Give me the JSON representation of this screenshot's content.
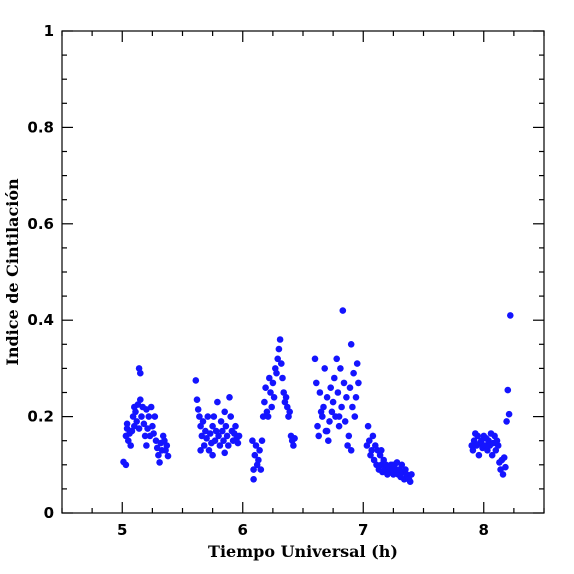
{
  "chart_data": {
    "type": "scatter",
    "xlabel": "Tiempo Universal (h)",
    "ylabel": "Indice de Cintilación",
    "xlim": [
      4.5,
      8.5
    ],
    "ylim": [
      0,
      1
    ],
    "xticks": [
      5,
      6,
      7,
      8
    ],
    "xtick_labels": [
      "5",
      "6",
      "7",
      "8"
    ],
    "yticks": [
      0,
      0.2,
      0.4,
      0.6,
      0.8,
      1
    ],
    "ytick_labels": [
      "0",
      "0.2",
      "0.4",
      "0.6",
      "0.8",
      "1"
    ],
    "grid": false,
    "point_color": "#1414ff",
    "series": [
      {
        "points": [
          [
            5.01,
            0.106
          ],
          [
            5.03,
            0.1
          ],
          [
            5.03,
            0.16
          ],
          [
            5.04,
            0.175
          ],
          [
            5.04,
            0.185
          ],
          [
            5.05,
            0.15
          ],
          [
            5.06,
            0.165
          ],
          [
            5.07,
            0.14
          ],
          [
            5.08,
            0.17
          ],
          [
            5.09,
            0.2
          ],
          [
            5.1,
            0.18
          ],
          [
            5.1,
            0.22
          ],
          [
            5.11,
            0.21
          ],
          [
            5.12,
            0.19
          ],
          [
            5.13,
            0.225
          ],
          [
            5.14,
            0.175
          ],
          [
            5.14,
            0.3
          ],
          [
            5.15,
            0.29
          ],
          [
            5.15,
            0.235
          ],
          [
            5.16,
            0.2
          ],
          [
            5.17,
            0.22
          ],
          [
            5.18,
            0.185
          ],
          [
            5.19,
            0.16
          ],
          [
            5.2,
            0.215
          ],
          [
            5.2,
            0.14
          ],
          [
            5.21,
            0.175
          ],
          [
            5.22,
            0.2
          ],
          [
            5.23,
            0.16
          ],
          [
            5.24,
            0.22
          ],
          [
            5.25,
            0.18
          ],
          [
            5.26,
            0.165
          ],
          [
            5.27,
            0.2
          ],
          [
            5.28,
            0.15
          ],
          [
            5.29,
            0.135
          ],
          [
            5.3,
            0.12
          ],
          [
            5.31,
            0.105
          ],
          [
            5.32,
            0.145
          ],
          [
            5.33,
            0.13
          ],
          [
            5.34,
            0.16
          ],
          [
            5.35,
            0.15
          ],
          [
            5.36,
            0.13
          ],
          [
            5.37,
            0.14
          ],
          [
            5.38,
            0.118
          ],
          [
            5.61,
            0.275
          ],
          [
            5.62,
            0.235
          ],
          [
            5.63,
            0.215
          ],
          [
            5.64,
            0.2
          ],
          [
            5.65,
            0.18
          ],
          [
            5.66,
            0.16
          ],
          [
            5.67,
            0.19
          ],
          [
            5.68,
            0.14
          ],
          [
            5.69,
            0.17
          ],
          [
            5.7,
            0.155
          ],
          [
            5.71,
            0.2
          ],
          [
            5.72,
            0.13
          ],
          [
            5.73,
            0.165
          ],
          [
            5.74,
            0.145
          ],
          [
            5.75,
            0.18
          ],
          [
            5.76,
            0.2
          ],
          [
            5.77,
            0.15
          ],
          [
            5.78,
            0.17
          ],
          [
            5.79,
            0.23
          ],
          [
            5.8,
            0.16
          ],
          [
            5.81,
            0.14
          ],
          [
            5.82,
            0.19
          ],
          [
            5.83,
            0.17
          ],
          [
            5.84,
            0.15
          ],
          [
            5.85,
            0.21
          ],
          [
            5.86,
            0.18
          ],
          [
            5.87,
            0.16
          ],
          [
            5.88,
            0.14
          ],
          [
            5.89,
            0.24
          ],
          [
            5.9,
            0.2
          ],
          [
            5.91,
            0.17
          ],
          [
            5.92,
            0.15
          ],
          [
            5.93,
            0.165
          ],
          [
            5.94,
            0.18
          ],
          [
            5.95,
            0.155
          ],
          [
            5.96,
            0.145
          ],
          [
            5.97,
            0.16
          ],
          [
            5.75,
            0.12
          ],
          [
            5.85,
            0.125
          ],
          [
            5.65,
            0.13
          ],
          [
            6.08,
            0.15
          ],
          [
            6.09,
            0.09
          ],
          [
            6.09,
            0.07
          ],
          [
            6.1,
            0.12
          ],
          [
            6.11,
            0.14
          ],
          [
            6.12,
            0.1
          ],
          [
            6.13,
            0.11
          ],
          [
            6.14,
            0.13
          ],
          [
            6.15,
            0.09
          ],
          [
            6.16,
            0.15
          ],
          [
            6.17,
            0.2
          ],
          [
            6.18,
            0.23
          ],
          [
            6.19,
            0.26
          ],
          [
            6.2,
            0.21
          ],
          [
            6.21,
            0.2
          ],
          [
            6.22,
            0.28
          ],
          [
            6.23,
            0.25
          ],
          [
            6.24,
            0.22
          ],
          [
            6.25,
            0.27
          ],
          [
            6.26,
            0.24
          ],
          [
            6.27,
            0.3
          ],
          [
            6.28,
            0.29
          ],
          [
            6.29,
            0.32
          ],
          [
            6.3,
            0.34
          ],
          [
            6.31,
            0.36
          ],
          [
            6.32,
            0.31
          ],
          [
            6.33,
            0.28
          ],
          [
            6.34,
            0.25
          ],
          [
            6.35,
            0.23
          ],
          [
            6.36,
            0.24
          ],
          [
            6.37,
            0.22
          ],
          [
            6.38,
            0.2
          ],
          [
            6.39,
            0.21
          ],
          [
            6.4,
            0.16
          ],
          [
            6.41,
            0.15
          ],
          [
            6.42,
            0.14
          ],
          [
            6.43,
            0.155
          ],
          [
            6.6,
            0.32
          ],
          [
            6.61,
            0.27
          ],
          [
            6.62,
            0.18
          ],
          [
            6.63,
            0.16
          ],
          [
            6.64,
            0.25
          ],
          [
            6.65,
            0.21
          ],
          [
            6.66,
            0.2
          ],
          [
            6.67,
            0.22
          ],
          [
            6.68,
            0.3
          ],
          [
            6.69,
            0.17
          ],
          [
            6.7,
            0.24
          ],
          [
            6.71,
            0.15
          ],
          [
            6.72,
            0.19
          ],
          [
            6.73,
            0.26
          ],
          [
            6.74,
            0.21
          ],
          [
            6.75,
            0.23
          ],
          [
            6.76,
            0.28
          ],
          [
            6.77,
            0.2
          ],
          [
            6.78,
            0.32
          ],
          [
            6.79,
            0.25
          ],
          [
            6.8,
            0.18
          ],
          [
            6.81,
            0.3
          ],
          [
            6.82,
            0.22
          ],
          [
            6.83,
            0.42
          ],
          [
            6.84,
            0.27
          ],
          [
            6.85,
            0.19
          ],
          [
            6.86,
            0.24
          ],
          [
            6.87,
            0.14
          ],
          [
            6.88,
            0.16
          ],
          [
            6.89,
            0.26
          ],
          [
            6.9,
            0.35
          ],
          [
            6.91,
            0.22
          ],
          [
            6.92,
            0.29
          ],
          [
            6.93,
            0.2
          ],
          [
            6.94,
            0.24
          ],
          [
            6.95,
            0.31
          ],
          [
            6.96,
            0.27
          ],
          [
            6.7,
            0.17
          ],
          [
            6.8,
            0.2
          ],
          [
            6.9,
            0.13
          ],
          [
            7.03,
            0.14
          ],
          [
            7.04,
            0.18
          ],
          [
            7.05,
            0.15
          ],
          [
            7.06,
            0.12
          ],
          [
            7.07,
            0.13
          ],
          [
            7.08,
            0.16
          ],
          [
            7.09,
            0.11
          ],
          [
            7.1,
            0.14
          ],
          [
            7.11,
            0.1
          ],
          [
            7.12,
            0.13
          ],
          [
            7.13,
            0.09
          ],
          [
            7.14,
            0.12
          ],
          [
            7.15,
            0.1
          ],
          [
            7.16,
            0.085
          ],
          [
            7.17,
            0.11
          ],
          [
            7.18,
            0.09
          ],
          [
            7.19,
            0.1
          ],
          [
            7.2,
            0.08
          ],
          [
            7.21,
            0.095
          ],
          [
            7.22,
            0.085
          ],
          [
            7.23,
            0.1
          ],
          [
            7.24,
            0.09
          ],
          [
            7.25,
            0.08
          ],
          [
            7.26,
            0.1
          ],
          [
            7.27,
            0.09
          ],
          [
            7.28,
            0.105
          ],
          [
            7.29,
            0.08
          ],
          [
            7.3,
            0.09
          ],
          [
            7.31,
            0.075
          ],
          [
            7.32,
            0.1
          ],
          [
            7.33,
            0.085
          ],
          [
            7.34,
            0.07
          ],
          [
            7.35,
            0.09
          ],
          [
            7.36,
            0.08
          ],
          [
            7.37,
            0.075
          ],
          [
            7.38,
            0.07
          ],
          [
            7.39,
            0.065
          ],
          [
            7.4,
            0.08
          ],
          [
            7.15,
            0.13
          ],
          [
            7.25,
            0.1
          ],
          [
            7.9,
            0.14
          ],
          [
            7.91,
            0.13
          ],
          [
            7.92,
            0.15
          ],
          [
            7.93,
            0.165
          ],
          [
            7.94,
            0.14
          ],
          [
            7.95,
            0.16
          ],
          [
            7.96,
            0.12
          ],
          [
            7.97,
            0.145
          ],
          [
            7.98,
            0.15
          ],
          [
            7.99,
            0.135
          ],
          [
            8.0,
            0.16
          ],
          [
            8.01,
            0.14
          ],
          [
            8.02,
            0.155
          ],
          [
            8.03,
            0.13
          ],
          [
            8.04,
            0.15
          ],
          [
            8.05,
            0.14
          ],
          [
            8.06,
            0.165
          ],
          [
            8.07,
            0.12
          ],
          [
            8.08,
            0.145
          ],
          [
            8.09,
            0.16
          ],
          [
            8.1,
            0.13
          ],
          [
            8.11,
            0.15
          ],
          [
            8.12,
            0.14
          ],
          [
            8.13,
            0.105
          ],
          [
            8.14,
            0.09
          ],
          [
            8.15,
            0.11
          ],
          [
            8.16,
            0.08
          ],
          [
            8.17,
            0.115
          ],
          [
            8.18,
            0.095
          ],
          [
            8.19,
            0.19
          ],
          [
            8.2,
            0.255
          ],
          [
            8.21,
            0.205
          ],
          [
            8.22,
            0.41
          ]
        ]
      }
    ]
  }
}
